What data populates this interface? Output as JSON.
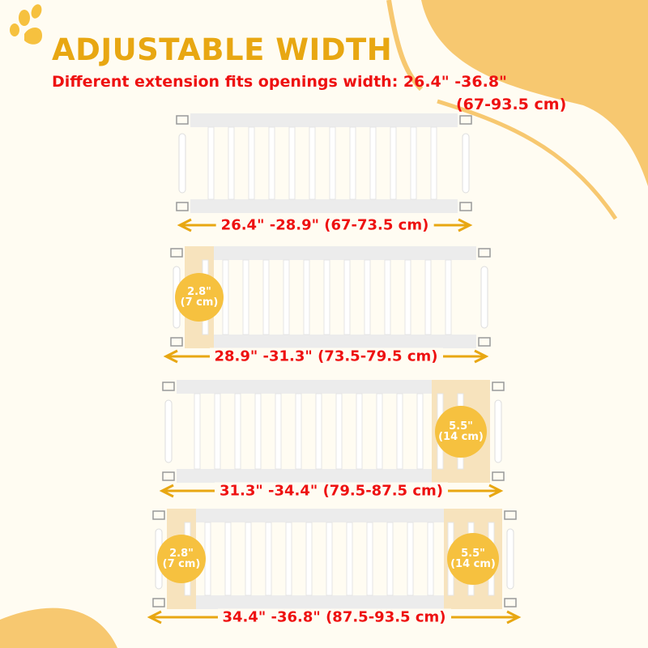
{
  "title": "ADJUSTABLE WIDTH",
  "subtitle_line1": "Different extension fits openings width: 26.4\" -36.8\"",
  "subtitle_line2": "(67-93.5 cm)",
  "icons": {
    "logo": "paw-print-icon"
  },
  "colors": {
    "accent": "#e8a712",
    "text_red": "#ee1111",
    "blob": "#f7c870",
    "badge": "#f6c13f",
    "extension": "#f7e3bd"
  },
  "gates": [
    {
      "range_label": "26.4\" -28.9\" (67-73.5 cm)",
      "extensions": []
    },
    {
      "range_label": "28.9\" -31.3\" (73.5-79.5 cm)",
      "extensions": [
        {
          "side": "left",
          "size_in": "2.8\"",
          "size_cm": "(7 cm)"
        }
      ]
    },
    {
      "range_label": "31.3\" -34.4\" (79.5-87.5 cm)",
      "extensions": [
        {
          "side": "right",
          "size_in": "5.5\"",
          "size_cm": "(14 cm)"
        }
      ]
    },
    {
      "range_label": "34.4\" -36.8\" (87.5-93.5 cm)",
      "extensions": [
        {
          "side": "left",
          "size_in": "2.8\"",
          "size_cm": "(7 cm)"
        },
        {
          "side": "right",
          "size_in": "5.5\"",
          "size_cm": "(14 cm)"
        }
      ]
    }
  ]
}
